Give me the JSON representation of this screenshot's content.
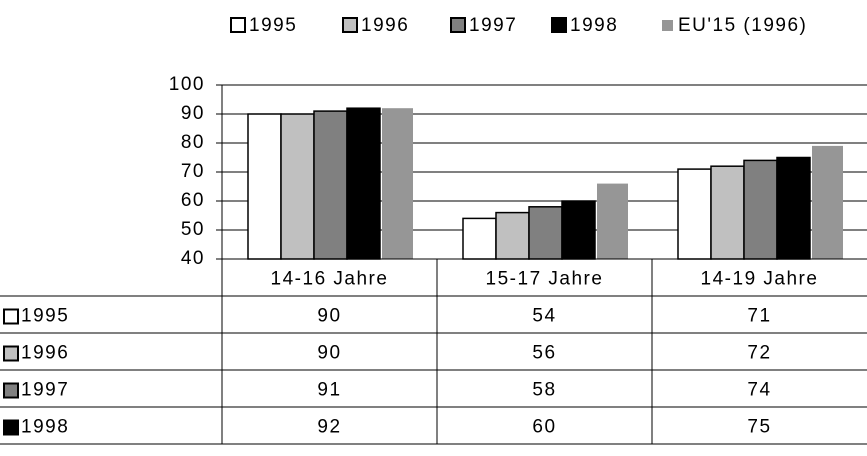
{
  "chart_data": {
    "type": "bar",
    "categories": [
      "14-16 Jahre",
      "15-17 Jahre",
      "14-19 Jahre"
    ],
    "series": [
      {
        "name": "1995",
        "color": "#ffffff",
        "values": [
          90,
          54,
          71
        ]
      },
      {
        "name": "1996",
        "color": "#c0c0c0",
        "values": [
          90,
          56,
          72
        ]
      },
      {
        "name": "1997",
        "color": "#808080",
        "values": [
          91,
          58,
          74
        ]
      },
      {
        "name": "1998",
        "color": "#000000",
        "values": [
          92,
          60,
          75
        ]
      },
      {
        "name": "EU'15 (1996)",
        "color": "#969696",
        "values": [
          92,
          66,
          79
        ]
      }
    ],
    "ylim": [
      40,
      100
    ],
    "yticks": [
      40,
      50,
      60,
      70,
      80,
      90,
      100
    ],
    "grid": true,
    "legend": "top"
  }
}
